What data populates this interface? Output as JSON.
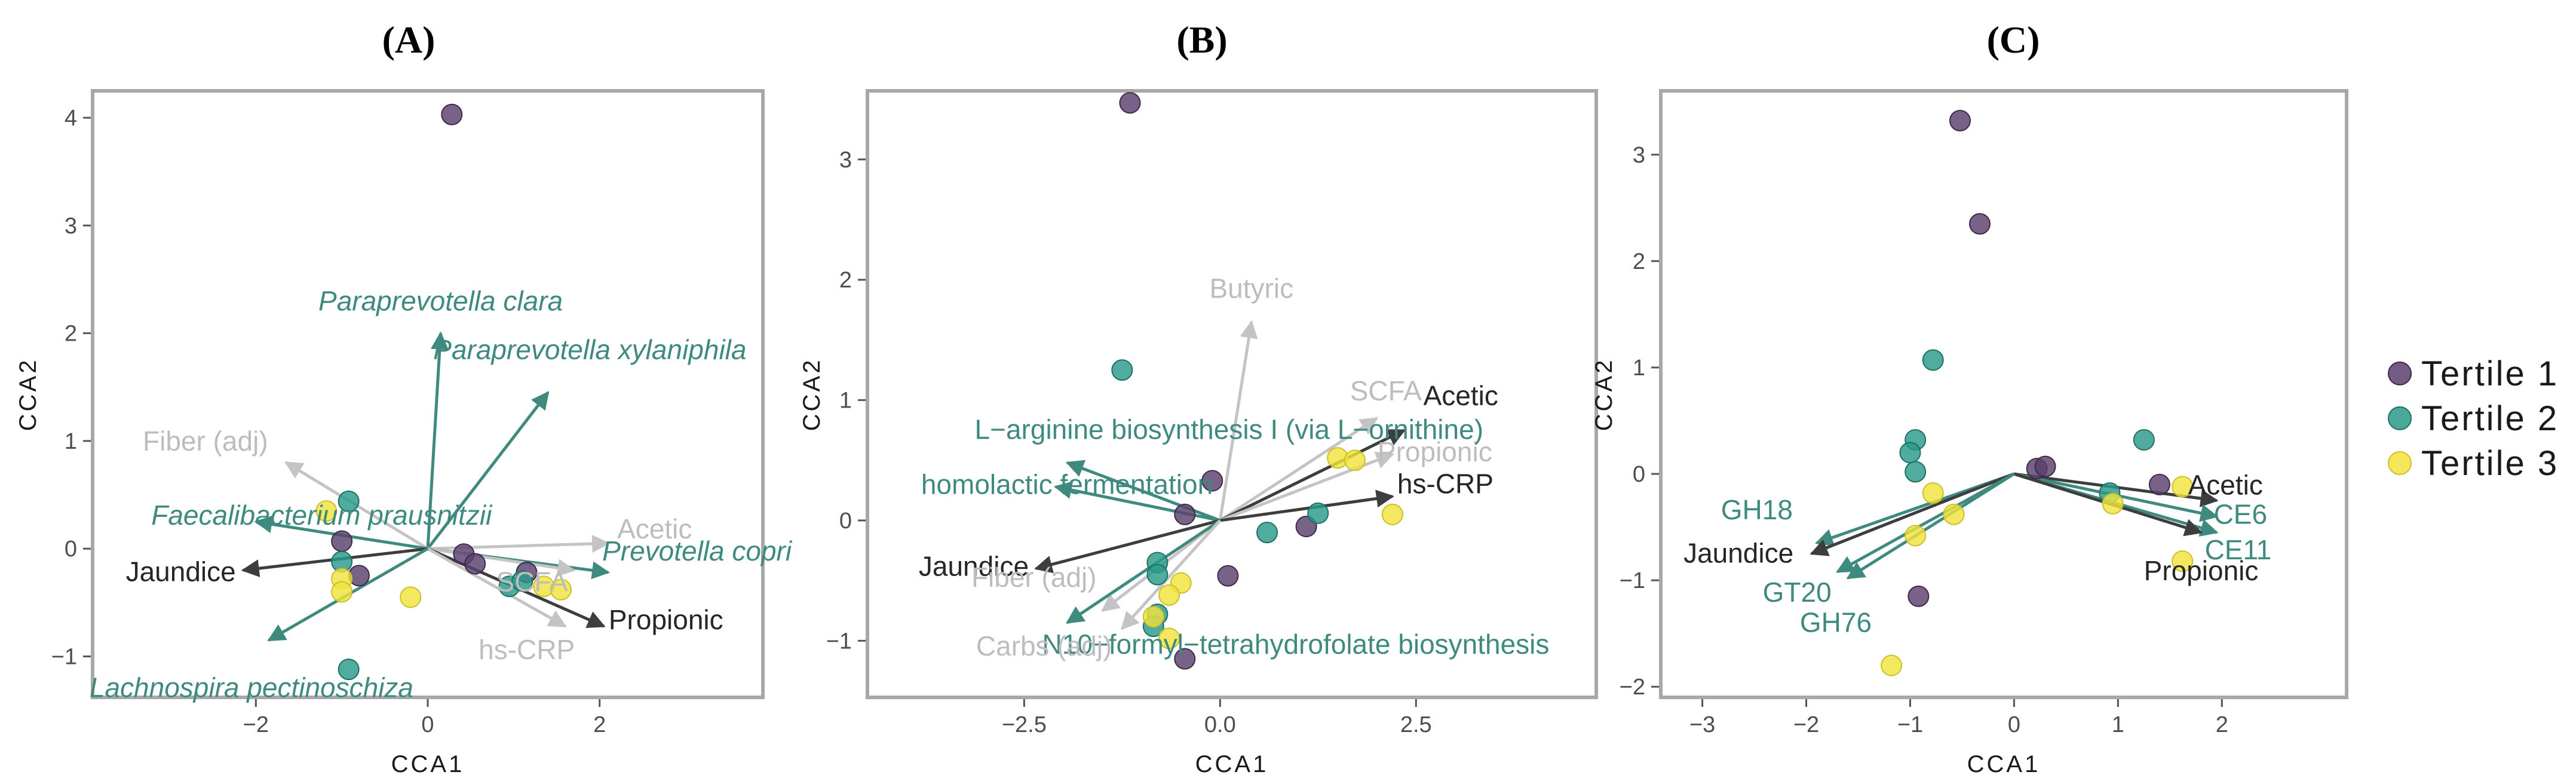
{
  "figure": {
    "legend": [
      {
        "label": "Tertile 1",
        "color": "#5b3f6d"
      },
      {
        "label": "Tertile 2",
        "color": "#2a9a8a"
      },
      {
        "label": "Tertile 3",
        "color": "#f2e33d"
      }
    ]
  },
  "chart_data": [
    {
      "type": "scatter",
      "panel_label": "(A)",
      "xlabel": "CCA1",
      "ylabel": "CCA2",
      "xlim": [
        -3.9,
        3.9
      ],
      "ylim": [
        -1.38,
        4.25
      ],
      "xticks": [
        -2,
        0,
        2
      ],
      "yticks": [
        -1,
        0,
        1,
        2,
        3,
        4
      ],
      "tick_labels_x": [
        "−2",
        "0",
        "2"
      ],
      "tick_labels_y": [
        "−1",
        "0",
        "1",
        "2",
        "3",
        "4"
      ],
      "points": [
        {
          "x": 0.28,
          "y": 4.03,
          "tertile": 1
        },
        {
          "x": -1.0,
          "y": 0.07,
          "tertile": 1
        },
        {
          "x": -0.8,
          "y": -0.25,
          "tertile": 1
        },
        {
          "x": 0.42,
          "y": -0.05,
          "tertile": 1
        },
        {
          "x": 0.55,
          "y": -0.14,
          "tertile": 1
        },
        {
          "x": 1.15,
          "y": -0.22,
          "tertile": 1
        },
        {
          "x": -0.92,
          "y": 0.44,
          "tertile": 2
        },
        {
          "x": -1.0,
          "y": -0.12,
          "tertile": 2
        },
        {
          "x": -0.92,
          "y": -1.12,
          "tertile": 2
        },
        {
          "x": 0.95,
          "y": -0.35,
          "tertile": 2
        },
        {
          "x": 1.1,
          "y": -0.3,
          "tertile": 2
        },
        {
          "x": -1.18,
          "y": 0.35,
          "tertile": 3
        },
        {
          "x": -1.0,
          "y": -0.28,
          "tertile": 3
        },
        {
          "x": -1.0,
          "y": -0.4,
          "tertile": 3
        },
        {
          "x": -0.2,
          "y": -0.45,
          "tertile": 3
        },
        {
          "x": 1.35,
          "y": -0.35,
          "tertile": 3
        },
        {
          "x": 1.55,
          "y": -0.38,
          "tertile": 3
        }
      ],
      "vectors": [
        {
          "label": "Paraprevotella clara",
          "x": 0.15,
          "y": 2.0,
          "color": "teal",
          "italic": true
        },
        {
          "label": "Paraprevotella xylaniphila",
          "x": 1.4,
          "y": 1.45,
          "color": "teal",
          "italic": true
        },
        {
          "label": "Fiber (adj)",
          "x": -1.65,
          "y": 0.8,
          "color": "light",
          "italic": false
        },
        {
          "label": "Faecalibacterium prausnitzii",
          "x": -2.0,
          "y": 0.25,
          "color": "teal",
          "italic": true
        },
        {
          "label": "Acetic",
          "x": 2.1,
          "y": 0.05,
          "color": "light",
          "italic": false
        },
        {
          "label": "Prevotella copri",
          "x": 2.1,
          "y": -0.22,
          "color": "teal",
          "italic": true
        },
        {
          "label": "SCFA",
          "x": 1.7,
          "y": -0.2,
          "color": "light",
          "italic": false
        },
        {
          "label": "Jaundice",
          "x": -2.15,
          "y": -0.2,
          "color": "dark",
          "italic": false
        },
        {
          "label": "Propionic",
          "x": 2.05,
          "y": -0.72,
          "color": "dark",
          "italic": false
        },
        {
          "label": "hs-CRP",
          "x": 1.6,
          "y": -0.72,
          "color": "light",
          "italic": false
        },
        {
          "label": "Lachnospira pectinoschiza",
          "x": -1.85,
          "y": -0.85,
          "color": "teal",
          "italic": true
        }
      ]
    },
    {
      "type": "scatter",
      "panel_label": "(B)",
      "xlabel": "CCA1",
      "ylabel": "CCA2",
      "xlim": [
        -4.5,
        4.8
      ],
      "ylim": [
        -1.47,
        3.57
      ],
      "xticks": [
        -2.5,
        0.0,
        2.5
      ],
      "yticks": [
        -1,
        0,
        1,
        2,
        3
      ],
      "tick_labels_x": [
        "−2.5",
        "0.0",
        "2.5"
      ],
      "tick_labels_y": [
        "−1",
        "0",
        "1",
        "2",
        "3"
      ],
      "points": [
        {
          "x": -1.15,
          "y": 3.47,
          "tertile": 1
        },
        {
          "x": -0.1,
          "y": 0.33,
          "tertile": 1
        },
        {
          "x": -0.45,
          "y": 0.05,
          "tertile": 1
        },
        {
          "x": 0.1,
          "y": -0.46,
          "tertile": 1
        },
        {
          "x": 1.1,
          "y": -0.05,
          "tertile": 1
        },
        {
          "x": -0.45,
          "y": -1.15,
          "tertile": 1
        },
        {
          "x": -1.25,
          "y": 1.25,
          "tertile": 2
        },
        {
          "x": -0.8,
          "y": -0.35,
          "tertile": 2
        },
        {
          "x": -0.8,
          "y": -0.45,
          "tertile": 2
        },
        {
          "x": 0.6,
          "y": -0.1,
          "tertile": 2
        },
        {
          "x": 1.25,
          "y": 0.06,
          "tertile": 2
        },
        {
          "x": -0.8,
          "y": -0.78,
          "tertile": 2
        },
        {
          "x": -0.85,
          "y": -0.88,
          "tertile": 2
        },
        {
          "x": 1.5,
          "y": 0.52,
          "tertile": 3
        },
        {
          "x": 1.72,
          "y": 0.5,
          "tertile": 3
        },
        {
          "x": 2.2,
          "y": 0.05,
          "tertile": 3
        },
        {
          "x": -0.5,
          "y": -0.52,
          "tertile": 3
        },
        {
          "x": -0.65,
          "y": -0.62,
          "tertile": 3
        },
        {
          "x": -0.85,
          "y": -0.8,
          "tertile": 3
        },
        {
          "x": -0.65,
          "y": -0.98,
          "tertile": 3
        }
      ],
      "vectors": [
        {
          "label": "Butyric",
          "x": 0.4,
          "y": 1.65,
          "color": "light",
          "italic": false
        },
        {
          "label": "SCFA",
          "x": 2.0,
          "y": 0.85,
          "color": "light",
          "italic": false
        },
        {
          "label": "Acetic",
          "x": 2.35,
          "y": 0.75,
          "color": "dark",
          "italic": false
        },
        {
          "label": "Propionic",
          "x": 2.2,
          "y": 0.55,
          "color": "light",
          "italic": false
        },
        {
          "label": "hs-CRP",
          "x": 2.2,
          "y": 0.2,
          "color": "dark",
          "italic": false
        },
        {
          "label": "L−arginine biosynthesis I (via L−ornithine)",
          "x": -1.95,
          "y": 0.48,
          "color": "teal",
          "italic": false
        },
        {
          "label": "homolactic fermentation",
          "x": -2.1,
          "y": 0.28,
          "color": "teal",
          "italic": false
        },
        {
          "label": "Jaundice",
          "x": -2.35,
          "y": -0.4,
          "color": "dark",
          "italic": false
        },
        {
          "label": "Fiber (adj)",
          "x": -1.5,
          "y": -0.75,
          "color": "light",
          "italic": false
        },
        {
          "label": "N10−formyl−tetrahydrofolate biosynthesis",
          "x": -1.95,
          "y": -0.85,
          "color": "teal",
          "italic": false
        },
        {
          "label": "Carbs (adj)",
          "x": -1.25,
          "y": -0.9,
          "color": "light",
          "italic": false
        }
      ]
    },
    {
      "type": "scatter",
      "panel_label": "(C)",
      "xlabel": "CCA1",
      "ylabel": "CCA2",
      "xlim": [
        -3.4,
        3.2
      ],
      "ylim": [
        -2.1,
        3.6
      ],
      "xticks": [
        -3,
        -2,
        -1,
        0,
        1,
        2
      ],
      "yticks": [
        -2,
        -1,
        0,
        1,
        2,
        3
      ],
      "tick_labels_x": [
        "−3",
        "−2",
        "−1",
        "0",
        "1",
        "2"
      ],
      "tick_labels_y": [
        "−2",
        "−1",
        "0",
        "1",
        "2",
        "3"
      ],
      "points": [
        {
          "x": -0.52,
          "y": 3.32,
          "tertile": 1
        },
        {
          "x": -0.33,
          "y": 2.35,
          "tertile": 1
        },
        {
          "x": 0.22,
          "y": 0.05,
          "tertile": 1
        },
        {
          "x": 0.3,
          "y": 0.07,
          "tertile": 1
        },
        {
          "x": 1.4,
          "y": -0.1,
          "tertile": 1
        },
        {
          "x": -0.92,
          "y": -1.15,
          "tertile": 1
        },
        {
          "x": -0.78,
          "y": 1.07,
          "tertile": 2
        },
        {
          "x": -0.95,
          "y": 0.32,
          "tertile": 2
        },
        {
          "x": -1.0,
          "y": 0.2,
          "tertile": 2
        },
        {
          "x": -0.95,
          "y": 0.02,
          "tertile": 2
        },
        {
          "x": 1.25,
          "y": 0.32,
          "tertile": 2
        },
        {
          "x": 0.92,
          "y": -0.18,
          "tertile": 2
        },
        {
          "x": 1.62,
          "y": -0.12,
          "tertile": 3
        },
        {
          "x": 0.95,
          "y": -0.28,
          "tertile": 3
        },
        {
          "x": 1.62,
          "y": -0.82,
          "tertile": 3
        },
        {
          "x": -0.78,
          "y": -0.18,
          "tertile": 3
        },
        {
          "x": -0.58,
          "y": -0.38,
          "tertile": 3
        },
        {
          "x": -0.95,
          "y": -0.58,
          "tertile": 3
        },
        {
          "x": -1.18,
          "y": -1.8,
          "tertile": 3
        }
      ],
      "vectors": [
        {
          "label": "Acetic",
          "x": 1.95,
          "y": -0.25,
          "color": "dark",
          "italic": false
        },
        {
          "label": "CE6",
          "x": 1.95,
          "y": -0.4,
          "color": "teal",
          "italic": false
        },
        {
          "label": "CE11",
          "x": 1.95,
          "y": -0.55,
          "color": "teal",
          "italic": false
        },
        {
          "label": "Propionic",
          "x": 1.8,
          "y": -0.55,
          "color": "dark",
          "italic": false
        },
        {
          "label": "GH18",
          "x": -1.9,
          "y": -0.65,
          "color": "teal",
          "italic": false
        },
        {
          "label": "Jaundice",
          "x": -1.95,
          "y": -0.75,
          "color": "dark",
          "italic": false
        },
        {
          "label": "GT20",
          "x": -1.7,
          "y": -0.92,
          "color": "teal",
          "italic": false
        },
        {
          "label": "GH76",
          "x": -1.6,
          "y": -0.98,
          "color": "teal",
          "italic": false
        }
      ]
    }
  ]
}
